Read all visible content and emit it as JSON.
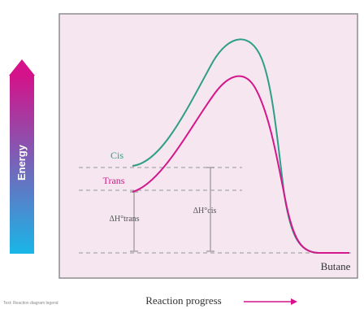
{
  "diagram": {
    "y_axis_label": "Energy",
    "x_axis_label": "Reaction progress",
    "curves": [
      {
        "name": "Cis",
        "color": "#2f9e86"
      },
      {
        "name": "Trans",
        "color": "#d4178c"
      }
    ],
    "product_label": "Butane",
    "delta_h_cis": "ΔH°cis",
    "delta_h_trans": "ΔH°trans",
    "source_credit": "Text: Reaction diagram legend",
    "colors": {
      "plot_bg": "#f5e6ef",
      "frame": "#8e8e8e",
      "guide": "#b5b0b3",
      "arrow_top": "#d4128a",
      "arrow_bottom": "#19b6e8"
    }
  }
}
